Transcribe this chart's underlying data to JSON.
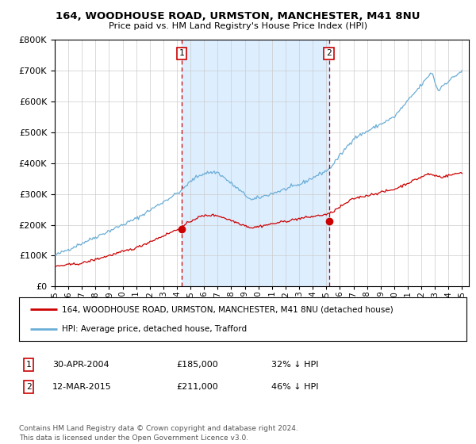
{
  "title_line1": "164, WOODHOUSE ROAD, URMSTON, MANCHESTER, M41 8NU",
  "title_line2": "Price paid vs. HM Land Registry's House Price Index (HPI)",
  "legend_line1": "164, WOODHOUSE ROAD, URMSTON, MANCHESTER, M41 8NU (detached house)",
  "legend_line2": "HPI: Average price, detached house, Trafford",
  "annotation1_date": "30-APR-2004",
  "annotation1_price": "£185,000",
  "annotation1_hpi": "32% ↓ HPI",
  "annotation2_date": "12-MAR-2015",
  "annotation2_price": "£211,000",
  "annotation2_hpi": "46% ↓ HPI",
  "footnote": "Contains HM Land Registry data © Crown copyright and database right 2024.\nThis data is licensed under the Open Government Licence v3.0.",
  "hpi_color": "#6baed6",
  "price_color": "#cc0000",
  "shading_color": "#ddeeff",
  "vline_color": "#cc0000",
  "background_color": "#ffffff",
  "grid_color": "#cccccc",
  "ylim": [
    0,
    800000
  ],
  "yticks": [
    0,
    100000,
    200000,
    300000,
    400000,
    500000,
    600000,
    700000,
    800000
  ],
  "year_start": 1995,
  "year_end": 2025,
  "sale1_year": 2004.33,
  "sale2_year": 2015.19,
  "sale1_value": 185000,
  "sale2_value": 211000
}
